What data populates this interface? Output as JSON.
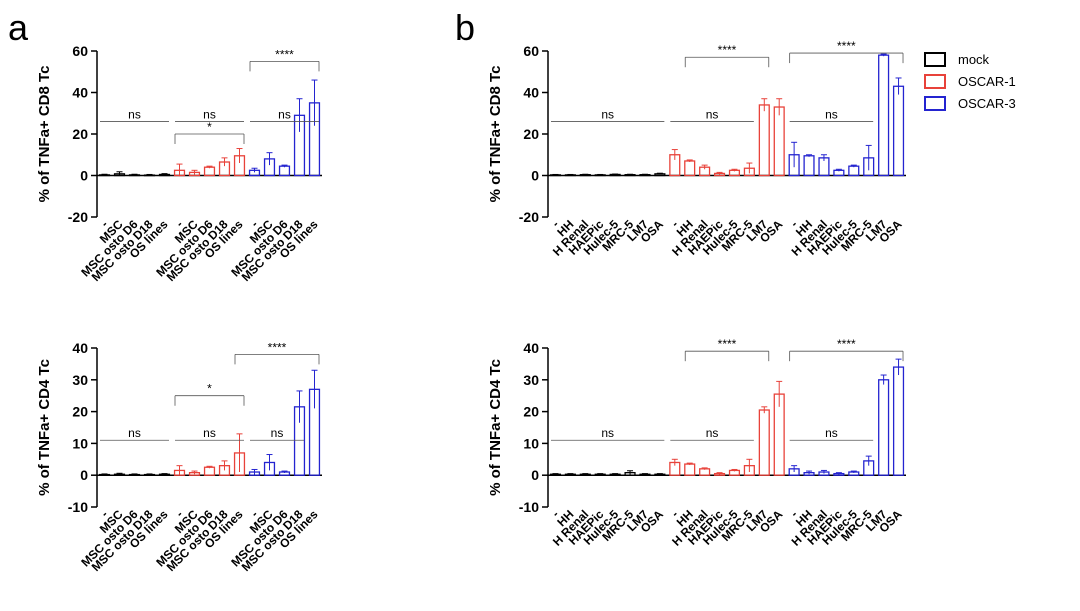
{
  "chart_data": [
    {
      "type": "bar",
      "panel": "a",
      "ylabel": "% of TNFa+ CD8 Tc",
      "ylim": [
        -20,
        60
      ],
      "yticks": [
        -20,
        0,
        20,
        40,
        60
      ],
      "series": [
        {
          "color": "#000000",
          "categories": [
            "-",
            "MSC",
            "MSC osto D6",
            "MSC osto D18",
            "OS lines"
          ],
          "values": [
            0.3,
            0.8,
            0.3,
            0.2,
            0.5
          ],
          "errors": [
            0.3,
            1,
            0.3,
            0.3,
            0.4
          ]
        },
        {
          "color": "#e8423a",
          "categories": [
            "-",
            "MSC",
            "MSC osto D6",
            "MSC osto D18",
            "OS lines"
          ],
          "values": [
            2.5,
            1.5,
            4,
            6.5,
            9.5
          ],
          "errors": [
            3,
            1,
            0.5,
            2,
            3.5
          ]
        },
        {
          "color": "#2424d0",
          "categories": [
            "-",
            "MSC",
            "MSC osto D6",
            "MSC osto D18",
            "OS lines"
          ],
          "values": [
            2.5,
            8,
            4.5,
            29,
            35
          ],
          "errors": [
            1,
            3,
            0.5,
            8,
            11
          ]
        }
      ],
      "annotations": [
        {
          "text": "ns",
          "from": 0,
          "to": 4,
          "y": 26,
          "bracket": false
        },
        {
          "text": "ns",
          "from": 5,
          "to": 9,
          "y": 26,
          "bracket": false
        },
        {
          "text": "ns",
          "from": 10,
          "to": 14,
          "y": 26,
          "bracket": false
        },
        {
          "text": "*",
          "from": 5,
          "to": 9,
          "y": 20,
          "bracket": true
        },
        {
          "text": "****",
          "from": 10,
          "to": 14,
          "y": 55,
          "bracket": true
        }
      ]
    },
    {
      "type": "bar",
      "panel": "b",
      "ylabel": "% of TNFa+ CD8 Tc",
      "ylim": [
        -20,
        60
      ],
      "yticks": [
        -20,
        0,
        20,
        40,
        60
      ],
      "series": [
        {
          "name": "mock",
          "color": "#000000",
          "categories": [
            "-",
            "HH",
            "H Renal",
            "HAEPic",
            "Hulec-5",
            "MRC-5",
            "LM7",
            "OSA"
          ],
          "values": [
            0.3,
            0.3,
            0.4,
            0.3,
            0.5,
            0.4,
            0.4,
            0.8
          ],
          "errors": [
            0.2,
            0.2,
            0.2,
            0.2,
            0.2,
            0.2,
            0.2,
            0.3
          ]
        },
        {
          "name": "OSCAR-1",
          "color": "#e8423a",
          "categories": [
            "-",
            "HH",
            "H Renal",
            "HAEPic",
            "Hulec-5",
            "MRC-5",
            "LM7",
            "OSA"
          ],
          "values": [
            10,
            7,
            4,
            1,
            2.5,
            3.5,
            34,
            33
          ],
          "errors": [
            2.5,
            0.5,
            1,
            0.5,
            0.5,
            2.5,
            3,
            4
          ]
        },
        {
          "name": "OSCAR-3",
          "color": "#2424d0",
          "categories": [
            "-",
            "HH",
            "H Renal",
            "HAEPic",
            "Hulec-5",
            "MRC-5",
            "LM7",
            "OSA"
          ],
          "values": [
            10,
            9.5,
            8.5,
            2.5,
            4.5,
            8.5,
            58,
            43
          ],
          "errors": [
            6,
            0.5,
            1.5,
            0.5,
            0.5,
            6,
            0.5,
            4
          ]
        }
      ],
      "legend": true,
      "annotations": [
        {
          "text": "ns",
          "from": 0,
          "to": 7,
          "y": 26,
          "bracket": false
        },
        {
          "text": "ns",
          "from": 8,
          "to": 13,
          "y": 26,
          "bracket": false
        },
        {
          "text": "ns",
          "from": 16,
          "to": 21,
          "y": 26,
          "bracket": false
        },
        {
          "text": "****",
          "from": 9,
          "to": 14,
          "y": 57,
          "bracket": true
        },
        {
          "text": "****",
          "from": 16,
          "to": 23,
          "y": 59,
          "bracket": true
        }
      ]
    },
    {
      "type": "bar",
      "ylabel": "% of TNFa+ CD4 Tc",
      "ylim": [
        -10,
        40
      ],
      "yticks": [
        -10,
        0,
        10,
        20,
        30,
        40
      ],
      "series": [
        {
          "color": "#000000",
          "categories": [
            "-",
            "MSC",
            "MSC osto D6",
            "MSC osto D18",
            "OS lines"
          ],
          "values": [
            0.2,
            0.3,
            0.2,
            0.2,
            0.3
          ],
          "errors": [
            0.2,
            0.3,
            0.2,
            0.2,
            0.2
          ]
        },
        {
          "color": "#e8423a",
          "categories": [
            "-",
            "MSC",
            "MSC osto D6",
            "MSC osto D18",
            "OS lines"
          ],
          "values": [
            1.5,
            0.8,
            2.5,
            3,
            7
          ],
          "errors": [
            1.5,
            0.5,
            0.3,
            1.5,
            6
          ]
        },
        {
          "color": "#2424d0",
          "categories": [
            "-",
            "MSC",
            "MSC osto D6",
            "MSC osto D18",
            "OS lines"
          ],
          "values": [
            1,
            4,
            1,
            21.5,
            27
          ],
          "errors": [
            0.8,
            2.5,
            0.3,
            5,
            6
          ]
        }
      ],
      "annotations": [
        {
          "text": "ns",
          "from": 0,
          "to": 4,
          "y": 11,
          "bracket": false
        },
        {
          "text": "ns",
          "from": 5,
          "to": 9,
          "y": 11,
          "bracket": false
        },
        {
          "text": "ns",
          "from": 10,
          "to": 13,
          "y": 11,
          "bracket": false
        },
        {
          "text": "*",
          "from": 5,
          "to": 9,
          "y": 25,
          "bracket": true
        },
        {
          "text": "****",
          "from": 9,
          "to": 14,
          "y": 38,
          "bracket": true
        }
      ]
    },
    {
      "type": "bar",
      "ylabel": "% of TNFa+ CD4 Tc",
      "ylim": [
        -10,
        40
      ],
      "yticks": [
        -10,
        0,
        10,
        20,
        30,
        40
      ],
      "series": [
        {
          "color": "#000000",
          "categories": [
            "-",
            "HH",
            "H Renal",
            "HAEPic",
            "Hulec-5",
            "MRC-5",
            "LM7",
            "OSA"
          ],
          "values": [
            0.3,
            0.3,
            0.3,
            0.3,
            0.3,
            0.8,
            0.3,
            0.3
          ],
          "errors": [
            0.2,
            0.2,
            0.2,
            0.2,
            0.2,
            0.6,
            0.2,
            0.2
          ]
        },
        {
          "color": "#e8423a",
          "categories": [
            "-",
            "HH",
            "H Renal",
            "HAEPic",
            "Hulec-5",
            "MRC-5",
            "LM7",
            "OSA"
          ],
          "values": [
            4,
            3.5,
            2,
            0.5,
            1.5,
            3,
            20.5,
            25.5
          ],
          "errors": [
            1,
            0.3,
            0.3,
            0.3,
            0.3,
            2,
            1,
            4
          ]
        },
        {
          "color": "#2424d0",
          "categories": [
            "-",
            "HH",
            "H Renal",
            "HAEPic",
            "Hulec-5",
            "MRC-5",
            "LM7",
            "OSA"
          ],
          "values": [
            2,
            0.8,
            1,
            0.5,
            1,
            4.5,
            30,
            34
          ],
          "errors": [
            1,
            0.5,
            0.5,
            0.3,
            0.3,
            1.5,
            1.5,
            2.5
          ]
        }
      ],
      "annotations": [
        {
          "text": "ns",
          "from": 0,
          "to": 7,
          "y": 11,
          "bracket": false
        },
        {
          "text": "ns",
          "from": 8,
          "to": 13,
          "y": 11,
          "bracket": false
        },
        {
          "text": "ns",
          "from": 16,
          "to": 21,
          "y": 11,
          "bracket": false
        },
        {
          "text": "****",
          "from": 9,
          "to": 14,
          "y": 39,
          "bracket": true
        },
        {
          "text": "****",
          "from": 16,
          "to": 23,
          "y": 39,
          "bracket": true
        }
      ]
    }
  ]
}
